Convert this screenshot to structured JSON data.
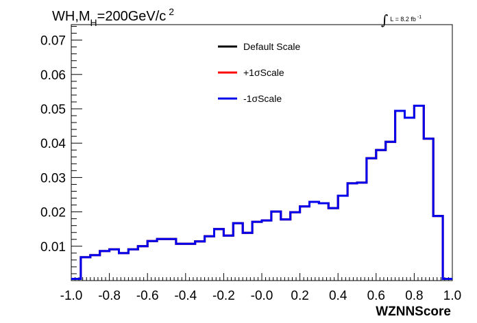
{
  "chart_data": {
    "type": "step-histogram",
    "title": {
      "main": "WH,M",
      "subscript": "H",
      "rest": "=200GeV/c",
      "superscript": "2"
    },
    "lumi": {
      "integral_symbol": "∫",
      "text": "L = 8.2 fb",
      "superscript": "-1"
    },
    "xlabel": "WZNNScore",
    "ylabel": "",
    "xlim": [
      -1.0,
      1.0
    ],
    "ylim": [
      0.0,
      0.0745
    ],
    "x_ticks": [
      "-1.0",
      "-0.8",
      "-0.6",
      "-0.4",
      "-0.2",
      "-0.0",
      "0.2",
      "0.4",
      "0.6",
      "0.8",
      "1.0"
    ],
    "y_ticks": [
      "0.01",
      "0.02",
      "0.03",
      "0.04",
      "0.05",
      "0.06",
      "0.07"
    ],
    "bin_edges_start": -1.0,
    "bin_width": 0.05,
    "series": [
      {
        "name": "Default Scale",
        "color": "#000000",
        "values": [
          0.0005,
          0.0068,
          0.0074,
          0.0086,
          0.0091,
          0.008,
          0.0091,
          0.01,
          0.0115,
          0.0121,
          0.0121,
          0.0107,
          0.0107,
          0.0114,
          0.0129,
          0.015,
          0.0131,
          0.0167,
          0.0139,
          0.0171,
          0.0175,
          0.0201,
          0.0178,
          0.0199,
          0.0216,
          0.0229,
          0.0225,
          0.0211,
          0.0247,
          0.0283,
          0.0285,
          0.0356,
          0.038,
          0.0404,
          0.0494,
          0.0474,
          0.0509,
          0.0413,
          0.0188,
          0.0005
        ]
      },
      {
        "name": "+1σScale",
        "color": "#ff0000",
        "values": [
          0.0005,
          0.0068,
          0.0074,
          0.0086,
          0.0091,
          0.008,
          0.0091,
          0.01,
          0.0115,
          0.0121,
          0.0121,
          0.0107,
          0.0107,
          0.0114,
          0.0129,
          0.015,
          0.0131,
          0.0167,
          0.0139,
          0.0171,
          0.0175,
          0.0201,
          0.0178,
          0.0199,
          0.0216,
          0.0229,
          0.0225,
          0.0211,
          0.0247,
          0.0283,
          0.0285,
          0.0356,
          0.038,
          0.0404,
          0.0494,
          0.0474,
          0.0509,
          0.0413,
          0.0188,
          0.0005
        ]
      },
      {
        "name": "-1σScale",
        "color": "#0000ee",
        "values": [
          0.0005,
          0.0068,
          0.0074,
          0.0086,
          0.0091,
          0.008,
          0.0091,
          0.01,
          0.0115,
          0.0121,
          0.0121,
          0.0107,
          0.0107,
          0.0114,
          0.0129,
          0.015,
          0.0131,
          0.0167,
          0.0139,
          0.0171,
          0.0175,
          0.0201,
          0.0178,
          0.0199,
          0.0216,
          0.0229,
          0.0225,
          0.0211,
          0.0247,
          0.0283,
          0.0285,
          0.0356,
          0.038,
          0.0404,
          0.0494,
          0.0474,
          0.0509,
          0.0413,
          0.0188,
          0.0005
        ]
      }
    ],
    "legend": {
      "placement": "top-center",
      "entries": [
        {
          "label": "Default Scale",
          "color": "#000000"
        },
        {
          "label": "+1σScale",
          "color": "#ff0000"
        },
        {
          "label": "-1σScale",
          "color": "#0000ee"
        }
      ]
    },
    "grid": false
  }
}
